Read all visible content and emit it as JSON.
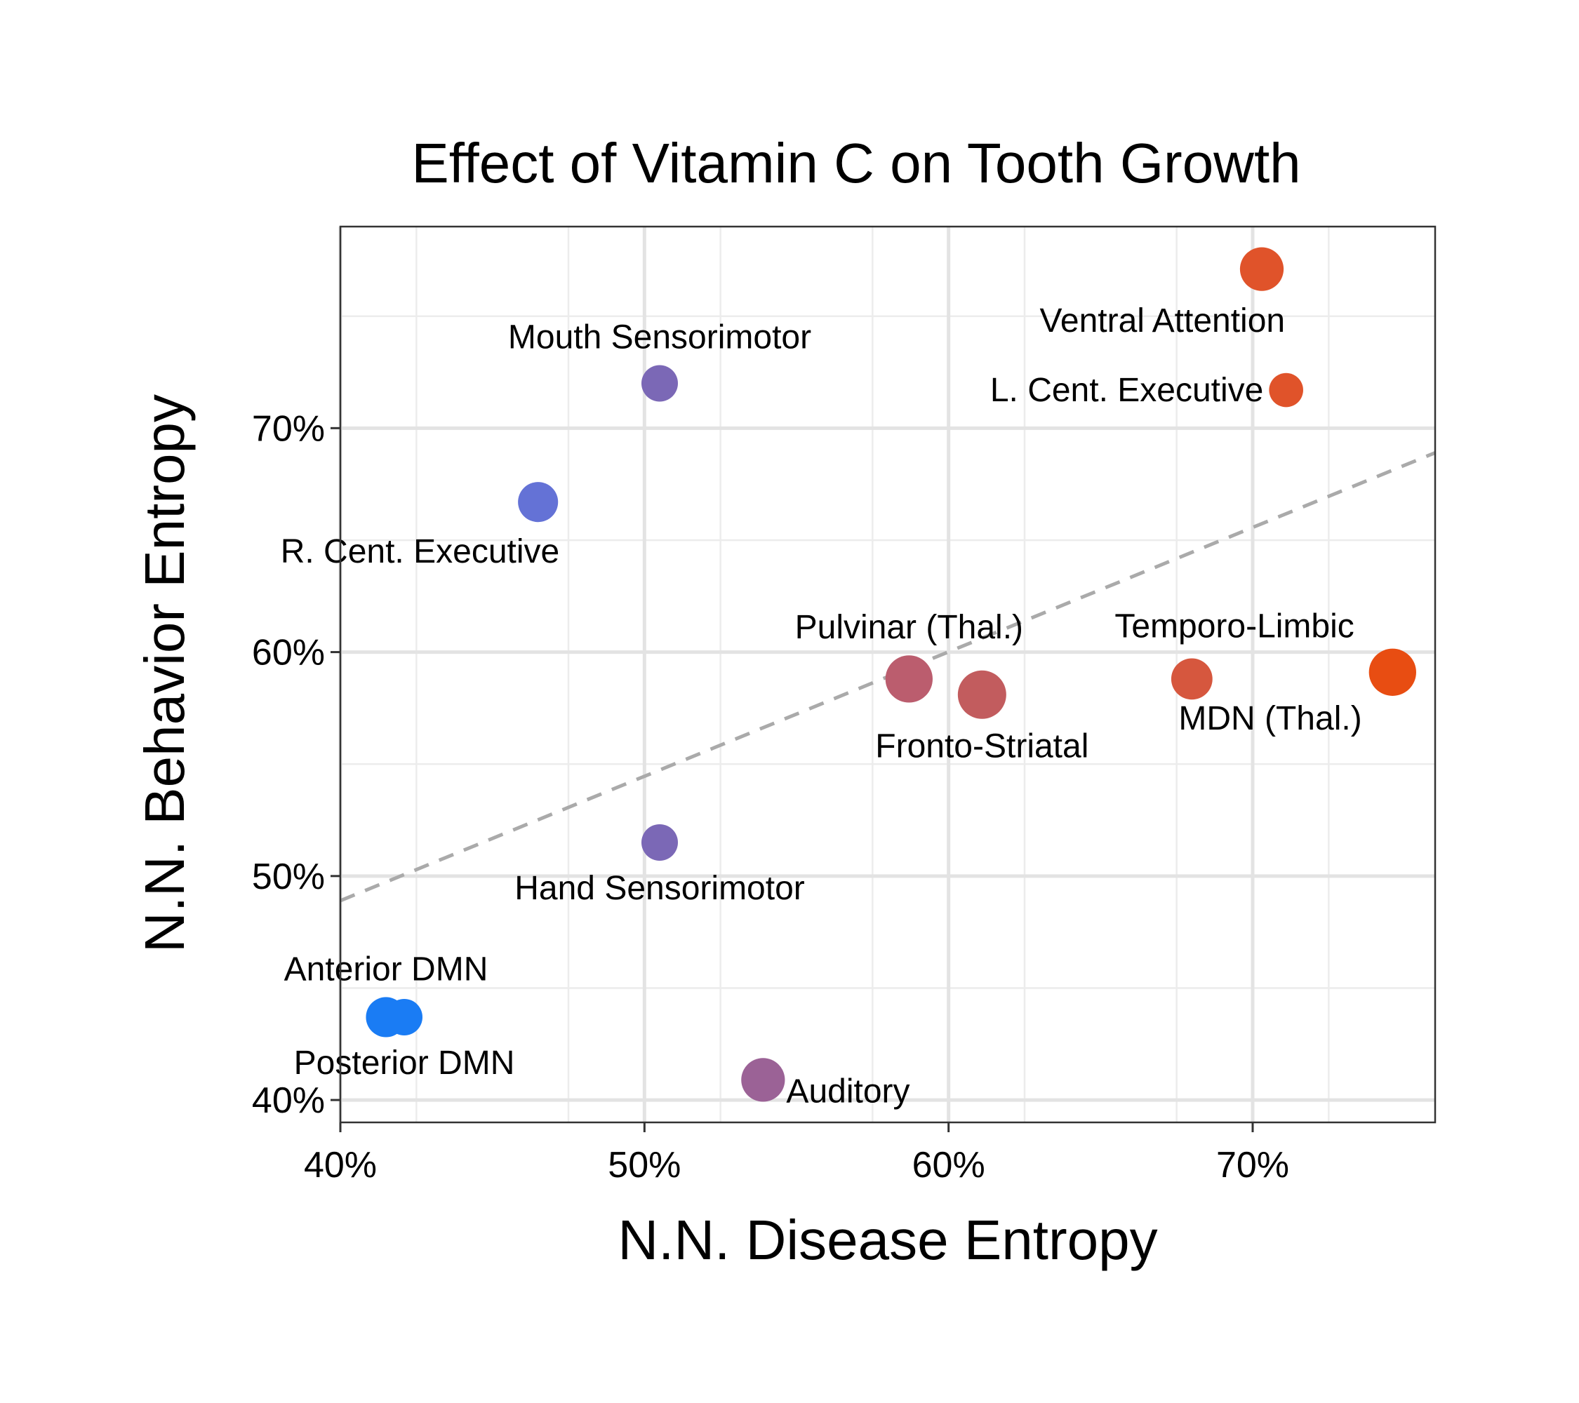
{
  "chart_data": {
    "type": "scatter",
    "title": "Effect of Vitamin C on Tooth Growth",
    "xlabel": "N.N. Disease Entropy",
    "ylabel": "N.N. Behavior Entropy",
    "xlim": [
      0.4,
      0.76
    ],
    "ylim": [
      0.39,
      0.79
    ],
    "x_ticks": [
      0.4,
      0.5,
      0.6,
      0.7
    ],
    "x_tick_labels": [
      "40%",
      "50%",
      "60%",
      "70%"
    ],
    "y_ticks": [
      0.4,
      0.5,
      0.6,
      0.7
    ],
    "y_tick_labels": [
      "40%",
      "50%",
      "60%",
      "70%"
    ],
    "grid": true,
    "trend_line": {
      "style": "dashed",
      "color": "#aaaaaa",
      "x": [
        0.4,
        0.76
      ],
      "y": [
        0.489,
        0.689
      ]
    },
    "points": [
      {
        "label": "Ventral Attention",
        "x": 0.703,
        "y": 0.771,
        "size": 2.6,
        "color": "#e0532a",
        "label_pos": "below-left"
      },
      {
        "label": "L. Cent. Executive",
        "x": 0.711,
        "y": 0.717,
        "size": 1.8,
        "color": "#e0532a",
        "label_pos": "left"
      },
      {
        "label": "Mouth Sensorimotor",
        "x": 0.505,
        "y": 0.72,
        "size": 2.0,
        "color": "#7b68b6",
        "label_pos": "above"
      },
      {
        "label": "R. Cent. Executive",
        "x": 0.465,
        "y": 0.667,
        "size": 2.3,
        "color": "#6472d6",
        "label_pos": "below-left"
      },
      {
        "label": "Pulvinar (Thal.)",
        "x": 0.587,
        "y": 0.588,
        "size": 2.9,
        "color": "#bb5d6e",
        "label_pos": "above"
      },
      {
        "label": "Fronto-Striatal",
        "x": 0.611,
        "y": 0.581,
        "size": 3.0,
        "color": "#c25c5e",
        "label_pos": "below"
      },
      {
        "label": "Temporo-Limbic",
        "x": 0.68,
        "y": 0.588,
        "size": 2.4,
        "color": "#d6573e",
        "label_pos": "above-right"
      },
      {
        "label": "MDN (Thal.)",
        "x": 0.746,
        "y": 0.591,
        "size": 2.9,
        "color": "#e84d12",
        "label_pos": "below-left"
      },
      {
        "label": "Hand Sensorimotor",
        "x": 0.505,
        "y": 0.515,
        "size": 2.0,
        "color": "#7b68b6",
        "label_pos": "below"
      },
      {
        "label": "Anterior DMN",
        "x": 0.415,
        "y": 0.437,
        "size": 2.3,
        "color": "#1a7cf4",
        "label_pos": "above"
      },
      {
        "label": "Posterior DMN",
        "x": 0.421,
        "y": 0.437,
        "size": 2.0,
        "color": "#1a7cf4",
        "label_pos": "below"
      },
      {
        "label": "Auditory",
        "x": 0.539,
        "y": 0.409,
        "size": 2.6,
        "color": "#9b6296",
        "label_pos": "right"
      }
    ]
  }
}
